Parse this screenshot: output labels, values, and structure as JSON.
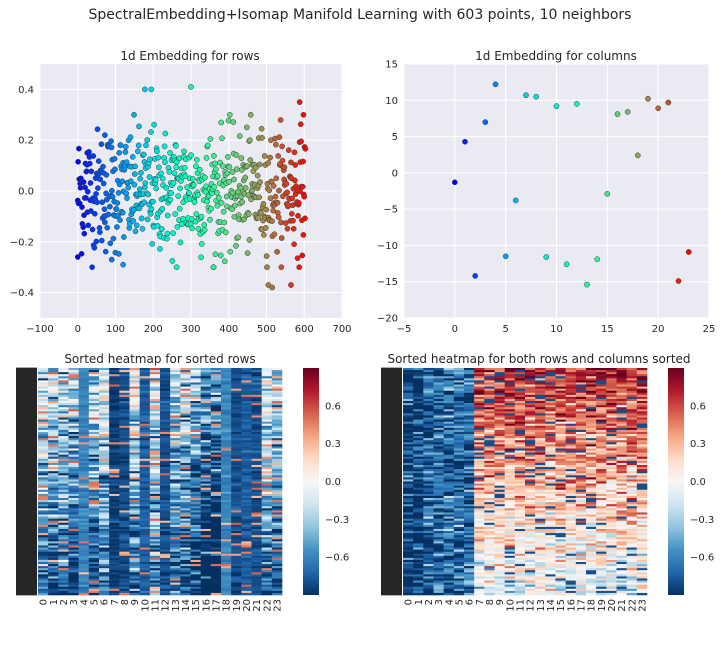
{
  "figure": {
    "title": "SpectralEmbedding+Isomap Manifold Learning with 603 points, 10 neighbors"
  },
  "colors": {
    "axes_bg": "#eaeaf2",
    "grid": "#ffffff",
    "marker_edge": "#3a3a3a",
    "colormap_scatter": "rainbow",
    "colormap_heatmap": "RdBu_r"
  },
  "chart_data": [
    {
      "type": "scatter",
      "title": "1d Embedding for rows",
      "xlabel": "",
      "ylabel": "",
      "xlim": [
        -100,
        700
      ],
      "ylim": [
        -0.5,
        0.5
      ],
      "xticks": [
        -100,
        0,
        100,
        200,
        300,
        400,
        500,
        600,
        700
      ],
      "yticks": [
        -0.4,
        -0.2,
        0.0,
        0.2,
        0.4
      ],
      "xtick_labels": [
        "−100",
        "0",
        "100",
        "200",
        "300",
        "400",
        "500",
        "600",
        "700"
      ],
      "ytick_labels": [
        "−0.4",
        "−0.2",
        "0.0",
        "0.2",
        "0.4"
      ],
      "point_count": 603,
      "color_by": "x",
      "grid": true,
      "notable_points": [
        {
          "x": 0,
          "y": -0.26
        },
        {
          "x": 25,
          "y": 0.15
        },
        {
          "x": 72,
          "y": 0.22
        },
        {
          "x": 90,
          "y": -0.27
        },
        {
          "x": 120,
          "y": -0.29
        },
        {
          "x": 178,
          "y": 0.4
        },
        {
          "x": 195,
          "y": 0.4
        },
        {
          "x": 300,
          "y": 0.41
        },
        {
          "x": 262,
          "y": -0.3
        },
        {
          "x": 360,
          "y": -0.3
        },
        {
          "x": 505,
          "y": -0.37
        },
        {
          "x": 515,
          "y": -0.38
        },
        {
          "x": 565,
          "y": -0.37
        },
        {
          "x": 588,
          "y": 0.35
        },
        {
          "x": 598,
          "y": 0.3
        }
      ]
    },
    {
      "type": "scatter",
      "title": "1d Embedding for columns",
      "xlabel": "",
      "ylabel": "",
      "xlim": [
        -5,
        25
      ],
      "ylim": [
        -20,
        15
      ],
      "xticks": [
        -5,
        0,
        5,
        10,
        15,
        20,
        25
      ],
      "yticks": [
        -20,
        -15,
        -10,
        -5,
        0,
        5,
        10,
        15
      ],
      "xtick_labels": [
        "−5",
        "0",
        "5",
        "10",
        "15",
        "20",
        "25"
      ],
      "ytick_labels": [
        "−20",
        "−15",
        "−10",
        "−5",
        "0",
        "5",
        "10",
        "15"
      ],
      "color_by": "x",
      "grid": true,
      "x": [
        0,
        1,
        2,
        3,
        4,
        5,
        6,
        7,
        8,
        9,
        10,
        11,
        12,
        13,
        14,
        15,
        16,
        17,
        18,
        19,
        20,
        21,
        22,
        23
      ],
      "y": [
        -1.3,
        4.3,
        -14.2,
        7.0,
        12.2,
        -11.5,
        -3.8,
        10.7,
        10.5,
        -11.6,
        9.2,
        -12.6,
        9.5,
        -15.4,
        -11.9,
        -2.9,
        8.1,
        8.4,
        2.4,
        10.2,
        8.9,
        9.7,
        -14.9,
        -10.9
      ]
    },
    {
      "type": "heatmap",
      "title": "Sorted heatmap for sorted rows",
      "rows": 603,
      "columns": [
        "0",
        "1",
        "2",
        "3",
        "4",
        "5",
        "6",
        "7",
        "8",
        "9",
        "10",
        "11",
        "12",
        "13",
        "14",
        "15",
        "16",
        "17",
        "18",
        "19",
        "20",
        "21",
        "22",
        "23"
      ],
      "colorbar": {
        "min": -0.9,
        "max": 0.9,
        "ticks": [
          -0.6,
          -0.3,
          0.0,
          0.3,
          0.6
        ],
        "tick_labels": [
          "−0.6",
          "−0.3",
          "0.0",
          "0.3",
          "0.6"
        ]
      }
    },
    {
      "type": "heatmap",
      "title": "Sorted heatmap for both rows and columns sorted",
      "rows": 603,
      "columns": [
        "0",
        "1",
        "2",
        "3",
        "4",
        "5",
        "6",
        "7",
        "8",
        "9",
        "10",
        "11",
        "12",
        "13",
        "14",
        "15",
        "16",
        "17",
        "18",
        "19",
        "20",
        "21",
        "22",
        "23"
      ],
      "colorbar": {
        "min": -0.9,
        "max": 0.9,
        "ticks": [
          -0.6,
          -0.3,
          0.0,
          0.3,
          0.6
        ],
        "tick_labels": [
          "−0.6",
          "−0.3",
          "0.0",
          "0.3",
          "0.6"
        ]
      }
    }
  ]
}
